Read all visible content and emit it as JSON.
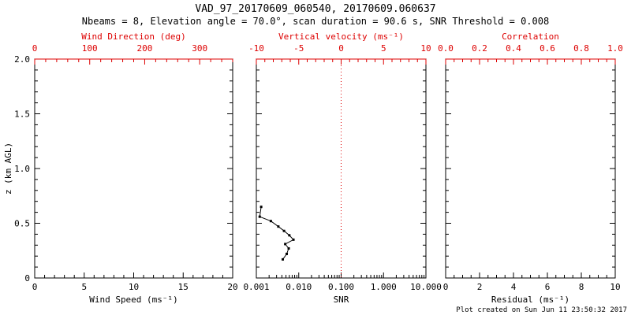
{
  "title": "VAD_97_20170609_060540, 20170609.060637",
  "subtitle": "Nbeams = 8, Elevation angle = 70.0°, scan duration = 90.6 s, SNR Threshold = 0.008",
  "footer": "Plot created on Sun Jun 11 23:50:32 2017",
  "colors": {
    "axis": "#000000",
    "secondary_axis": "#dd0000",
    "series": "#000000",
    "background": "#ffffff"
  },
  "y_axis": {
    "label": "z (km AGL)",
    "lim": [
      0,
      2
    ],
    "minor_step": 0.1,
    "ticks": [
      {
        "v": 0,
        "label": "0"
      },
      {
        "v": 0.5,
        "label": "0.5"
      },
      {
        "v": 1.0,
        "label": "1.0"
      },
      {
        "v": 1.5,
        "label": "1.5"
      },
      {
        "v": 2.0,
        "label": "2.0"
      }
    ]
  },
  "chart_data": [
    {
      "type": "line",
      "panel": "wind-speed",
      "x_axis": {
        "label": "Wind Speed (ms⁻¹)",
        "lim": [
          0,
          20
        ],
        "minor_step": 1,
        "ticks": [
          {
            "v": 0,
            "label": "0"
          },
          {
            "v": 5,
            "label": "5"
          },
          {
            "v": 10,
            "label": "10"
          },
          {
            "v": 15,
            "label": "15"
          },
          {
            "v": 20,
            "label": "20"
          }
        ]
      },
      "top_axis": {
        "label": "Wind Direction (deg)",
        "lim": [
          0,
          360
        ],
        "minor_step": 20,
        "ticks": [
          {
            "v": 0,
            "label": "0"
          },
          {
            "v": 100,
            "label": "100"
          },
          {
            "v": 200,
            "label": "200"
          },
          {
            "v": 300,
            "label": "300"
          }
        ]
      },
      "series": []
    },
    {
      "type": "line",
      "panel": "snr",
      "x_axis": {
        "label": "SNR",
        "scale": "log",
        "lim": [
          0.001,
          10
        ],
        "ticks": [
          {
            "v": 0.001,
            "label": "0.001"
          },
          {
            "v": 0.01,
            "label": "0.010"
          },
          {
            "v": 0.1,
            "label": "0.100"
          },
          {
            "v": 1,
            "label": "1.000"
          },
          {
            "v": 10,
            "label": "10.000"
          }
        ]
      },
      "top_axis": {
        "label": "Vertical velocity (ms⁻¹)",
        "lim": [
          -10,
          10
        ],
        "minor_step": 1,
        "ticks": [
          {
            "v": -10,
            "label": "-10"
          },
          {
            "v": -5,
            "label": "-5"
          },
          {
            "v": 0,
            "label": "0"
          },
          {
            "v": 5,
            "label": "5"
          },
          {
            "v": 10,
            "label": "10"
          }
        ]
      },
      "refline": {
        "axis": "top",
        "value": 0,
        "style": "dotted",
        "color": "#dd0000"
      },
      "series": [
        {
          "name": "snr-profile",
          "marker": "square",
          "color": "#000000",
          "points": [
            [
              0.0013,
              0.65
            ],
            [
              0.0012,
              0.56
            ],
            [
              0.0022,
              0.52
            ],
            [
              0.0033,
              0.47
            ],
            [
              0.0045,
              0.43
            ],
            [
              0.006,
              0.39
            ],
            [
              0.0075,
              0.35
            ],
            [
              0.0048,
              0.31
            ],
            [
              0.0058,
              0.27
            ],
            [
              0.0052,
              0.22
            ],
            [
              0.0042,
              0.17
            ]
          ]
        }
      ]
    },
    {
      "type": "line",
      "panel": "residual",
      "x_axis": {
        "label": "Residual (ms⁻¹)",
        "lim": [
          0,
          10
        ],
        "minor_step": 0.5,
        "ticks": [
          {
            "v": 0,
            "label": "0"
          },
          {
            "v": 2,
            "label": "2"
          },
          {
            "v": 4,
            "label": "4"
          },
          {
            "v": 6,
            "label": "6"
          },
          {
            "v": 8,
            "label": "8"
          },
          {
            "v": 10,
            "label": "10"
          }
        ]
      },
      "top_axis": {
        "label": "Correlation",
        "lim": [
          0,
          1
        ],
        "minor_step": 0.05,
        "ticks": [
          {
            "v": 0,
            "label": "0.0"
          },
          {
            "v": 0.2,
            "label": "0.2"
          },
          {
            "v": 0.4,
            "label": "0.4"
          },
          {
            "v": 0.6,
            "label": "0.6"
          },
          {
            "v": 0.8,
            "label": "0.8"
          },
          {
            "v": 1,
            "label": "1.0"
          }
        ]
      },
      "series": []
    }
  ]
}
